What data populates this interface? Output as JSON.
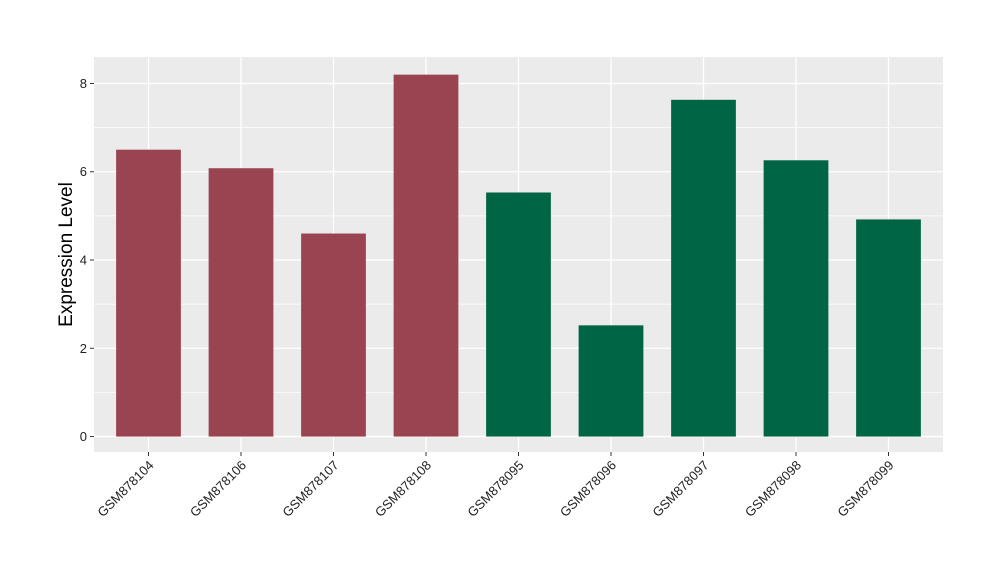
{
  "chart_data": {
    "type": "bar",
    "title": "",
    "xlabel": "",
    "ylabel": "Expression Level",
    "ylim": [
      -0.35,
      8.6
    ],
    "yticks": [
      0,
      2,
      4,
      6,
      8
    ],
    "grid": true,
    "legend": "none",
    "background_color": "#EBEBEB",
    "gridline_color": "#FFFFFF",
    "categories": [
      "GSM878104",
      "GSM878106",
      "GSM878107",
      "GSM878108",
      "GSM878095",
      "GSM878096",
      "GSM878097",
      "GSM878098",
      "GSM878099"
    ],
    "values": [
      6.5,
      6.08,
      4.6,
      8.2,
      5.53,
      2.52,
      7.63,
      6.26,
      4.92
    ],
    "bar_colors": [
      "#994450",
      "#994450",
      "#994450",
      "#994450",
      "#006544",
      "#006544",
      "#006544",
      "#006544",
      "#006544"
    ]
  }
}
